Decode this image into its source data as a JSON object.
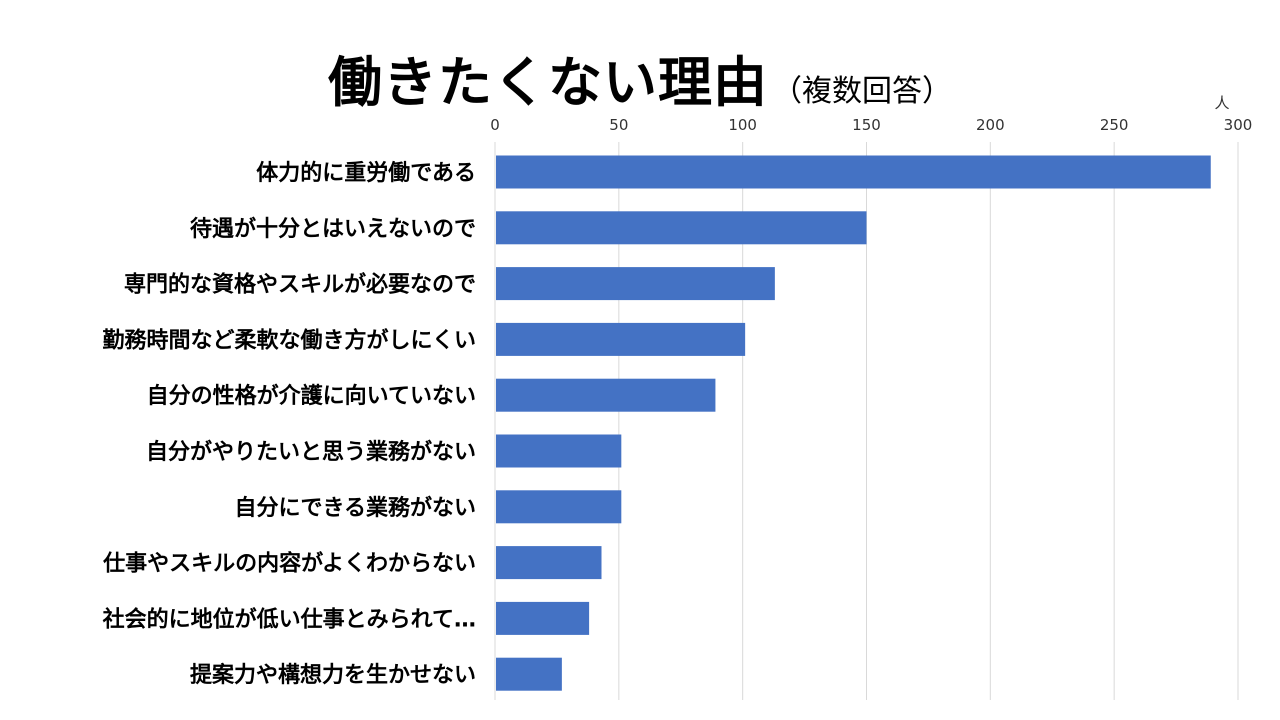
{
  "title": {
    "main": "働きたくない理由",
    "sub": "（複数回答）"
  },
  "chart_data": {
    "type": "bar",
    "orientation": "horizontal",
    "title": "働きたくない理由（複数回答）",
    "unit_label": "人",
    "xlim": [
      0,
      300
    ],
    "ticks": [
      0,
      50,
      100,
      150,
      200,
      250,
      300
    ],
    "grid": true,
    "bar_color": "#4472C4",
    "categories": [
      "体力的に重労働である",
      "待遇が十分とはいえないので",
      "専門的な資格やスキルが必要なので",
      "勤務時間など柔軟な働き方がしにくい",
      "自分の性格が介護に向いていない",
      "自分がやりたいと思う業務がない",
      "自分にできる業務がない",
      "仕事やスキルの内容がよくわからない",
      "社会的に地位が低い仕事とみられて…",
      "提案力や構想力を生かせない"
    ],
    "values": [
      289,
      150,
      113,
      101,
      89,
      51,
      51,
      43,
      38,
      27
    ]
  }
}
